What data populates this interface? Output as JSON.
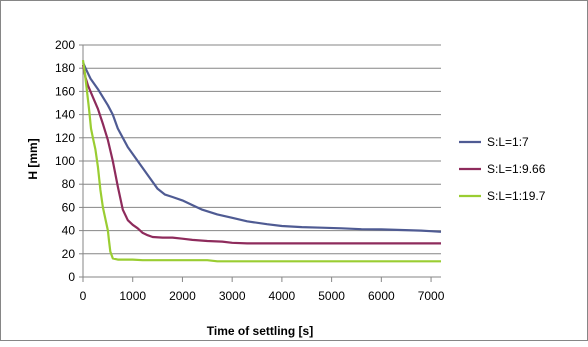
{
  "chart_data": {
    "type": "line",
    "title": "",
    "xlabel": "Time of settling [s]",
    "ylabel": "H [mm]",
    "xlim": [
      0,
      7200
    ],
    "ylim": [
      0,
      200
    ],
    "x_ticks": [
      0,
      1000,
      2000,
      3000,
      4000,
      5000,
      6000,
      7000
    ],
    "y_ticks": [
      0,
      20,
      40,
      60,
      80,
      100,
      120,
      140,
      160,
      180,
      200
    ],
    "grid": "horizontal",
    "legend_position": "right",
    "series": [
      {
        "name": "S:L=1:7",
        "color": "#4f5b93",
        "points": [
          [
            0,
            185
          ],
          [
            50,
            180
          ],
          [
            150,
            171
          ],
          [
            300,
            162
          ],
          [
            400,
            155
          ],
          [
            500,
            148
          ],
          [
            600,
            140
          ],
          [
            700,
            128
          ],
          [
            900,
            112
          ],
          [
            1100,
            100
          ],
          [
            1300,
            88
          ],
          [
            1500,
            76
          ],
          [
            1650,
            71
          ],
          [
            1800,
            69
          ],
          [
            2000,
            66
          ],
          [
            2200,
            62
          ],
          [
            2400,
            58
          ],
          [
            2700,
            54
          ],
          [
            3000,
            51
          ],
          [
            3300,
            48
          ],
          [
            3700,
            45.5
          ],
          [
            4000,
            44
          ],
          [
            4400,
            43
          ],
          [
            4800,
            42.5
          ],
          [
            5200,
            42
          ],
          [
            5600,
            41.2
          ],
          [
            6000,
            41
          ],
          [
            6400,
            40.5
          ],
          [
            6800,
            40
          ],
          [
            7000,
            39.5
          ],
          [
            7200,
            39
          ]
        ]
      },
      {
        "name": "S:L=1:9.66",
        "color": "#8e2b5c",
        "points": [
          [
            0,
            183
          ],
          [
            50,
            172
          ],
          [
            100,
            165
          ],
          [
            200,
            155
          ],
          [
            300,
            145
          ],
          [
            400,
            132
          ],
          [
            500,
            118
          ],
          [
            600,
            100
          ],
          [
            700,
            78
          ],
          [
            800,
            58
          ],
          [
            900,
            49
          ],
          [
            1000,
            45
          ],
          [
            1100,
            42
          ],
          [
            1200,
            38
          ],
          [
            1300,
            36
          ],
          [
            1400,
            34.5
          ],
          [
            1600,
            34
          ],
          [
            1800,
            34
          ],
          [
            2000,
            33
          ],
          [
            2200,
            32
          ],
          [
            2500,
            31
          ],
          [
            2800,
            30.5
          ],
          [
            3000,
            29.5
          ],
          [
            3300,
            29
          ],
          [
            4000,
            29
          ],
          [
            5000,
            29
          ],
          [
            6000,
            29
          ],
          [
            7200,
            29
          ]
        ]
      },
      {
        "name": "S:L=1:19.7",
        "color": "#9acd32",
        "points": [
          [
            0,
            187
          ],
          [
            40,
            175
          ],
          [
            80,
            160
          ],
          [
            120,
            145
          ],
          [
            160,
            128
          ],
          [
            200,
            120
          ],
          [
            250,
            110
          ],
          [
            300,
            95
          ],
          [
            350,
            75
          ],
          [
            400,
            60
          ],
          [
            450,
            50
          ],
          [
            500,
            40
          ],
          [
            520,
            32
          ],
          [
            550,
            22
          ],
          [
            600,
            16
          ],
          [
            700,
            15
          ],
          [
            800,
            15
          ],
          [
            1000,
            15
          ],
          [
            1200,
            14.5
          ],
          [
            1500,
            14.5
          ],
          [
            2000,
            14.5
          ],
          [
            2500,
            14.5
          ],
          [
            2700,
            13.5
          ],
          [
            3000,
            13.5
          ],
          [
            4000,
            13.5
          ],
          [
            5000,
            13.5
          ],
          [
            6000,
            13.5
          ],
          [
            7200,
            13.5
          ]
        ]
      }
    ]
  }
}
